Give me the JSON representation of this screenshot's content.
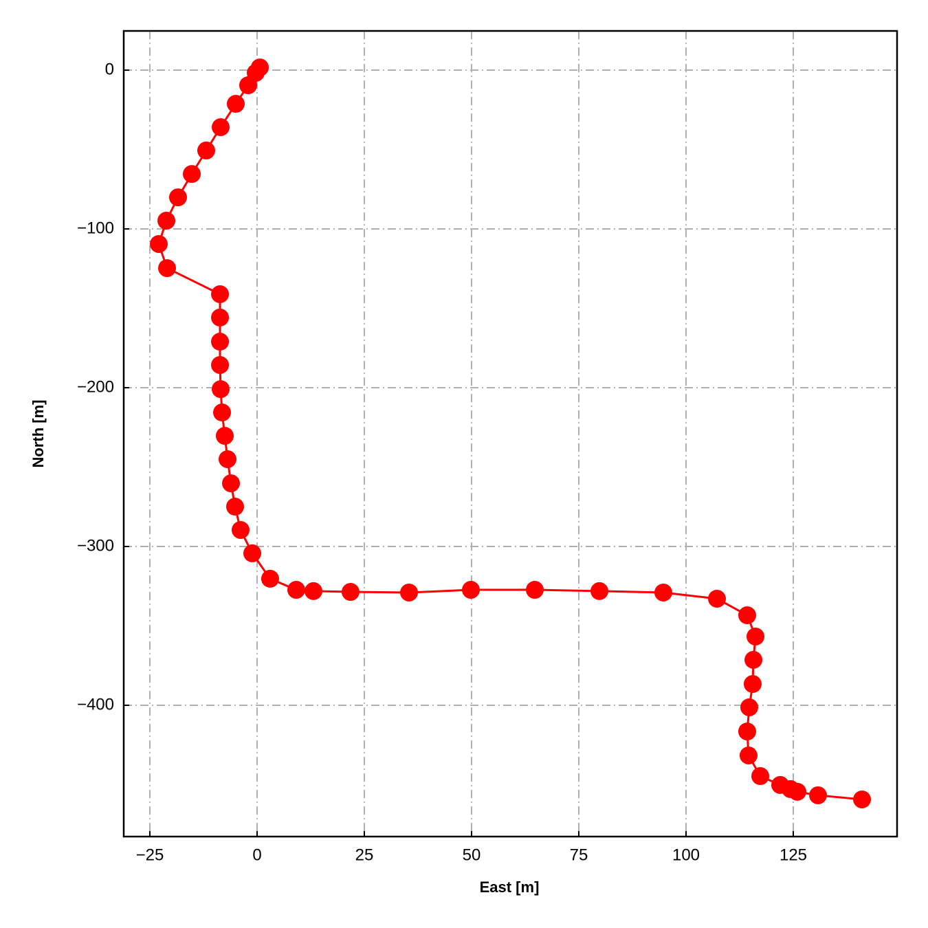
{
  "chart_data": {
    "type": "line",
    "xlabel": "East [m]",
    "ylabel": "North [m]",
    "color": "#ff0000",
    "markers": true,
    "grid": true,
    "x": [
      0.64,
      -0.32,
      -2.08,
      -4.97,
      -8.49,
      -11.86,
      -15.22,
      -18.43,
      -21.15,
      -22.92,
      -20.99,
      -8.65,
      -8.65,
      -8.65,
      -8.65,
      -8.49,
      -8.17,
      -7.53,
      -6.89,
      -6.09,
      -5.13,
      -3.85,
      -1.12,
      3.04,
      9.13,
      13.14,
      21.79,
      35.42,
      49.84,
      64.74,
      79.81,
      94.71,
      107.21,
      114.26,
      116.19,
      115.71,
      115.54,
      114.74,
      114.26,
      114.58,
      117.31,
      121.96,
      124.36,
      125.96,
      130.77,
      141.03
    ],
    "y": [
      1.7,
      -1.7,
      -9.5,
      -21.2,
      -35.9,
      -50.6,
      -65.4,
      -80.1,
      -94.8,
      -109.5,
      -124.7,
      -141.1,
      -155.8,
      -171.0,
      -185.7,
      -200.9,
      -215.6,
      -230.3,
      -245.0,
      -260.2,
      -274.9,
      -289.6,
      -304.3,
      -320.3,
      -327.3,
      -328.1,
      -328.6,
      -329.0,
      -327.3,
      -327.3,
      -328.1,
      -329.0,
      -332.9,
      -343.3,
      -356.7,
      -371.4,
      -386.6,
      -401.3,
      -416.5,
      -431.6,
      -444.6,
      -450.2,
      -452.8,
      -454.5,
      -456.7,
      -459.3
    ],
    "xlim": [
      -31.09,
      149.2
    ],
    "ylim": [
      -482.7,
      24.7
    ],
    "xticks": [
      {
        "value": -25,
        "label": "−25"
      },
      0,
      25,
      50,
      75,
      100,
      125
    ],
    "yticks": [
      {
        "value": -400,
        "label": "−400"
      },
      {
        "value": -300,
        "label": "−300"
      },
      {
        "value": -200,
        "label": "−200"
      },
      {
        "value": -100,
        "label": "−100"
      },
      0
    ]
  }
}
